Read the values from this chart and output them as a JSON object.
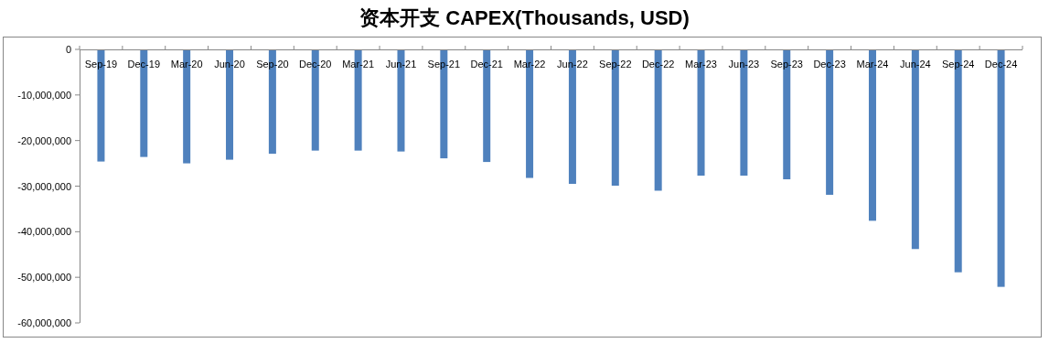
{
  "chart_data": {
    "type": "bar",
    "title": "资本开支 CAPEX(Thousands, USD)",
    "categories": [
      "Sep-19",
      "Dec-19",
      "Mar-20",
      "Jun-20",
      "Sep-20",
      "Dec-20",
      "Mar-21",
      "Jun-21",
      "Sep-21",
      "Dec-21",
      "Mar-22",
      "Jun-22",
      "Sep-22",
      "Dec-22",
      "Mar-23",
      "Jun-23",
      "Sep-23",
      "Dec-23",
      "Mar-24",
      "Jun-24",
      "Sep-24",
      "Dec-24"
    ],
    "values": [
      -24600000,
      -23600000,
      -25000000,
      -24200000,
      -22900000,
      -22200000,
      -22200000,
      -22400000,
      -23900000,
      -24700000,
      -28200000,
      -29500000,
      -29900000,
      -31000000,
      -27700000,
      -27700000,
      -28500000,
      -31900000,
      -37600000,
      -43800000,
      -48900000,
      -52100000
    ],
    "color": "#4f81bd",
    "ylim": [
      -60000000,
      0
    ],
    "yticks": [
      {
        "value": -60000000,
        "label": "-60,000,000"
      },
      {
        "value": -50000000,
        "label": "-50,000,000"
      },
      {
        "value": -40000000,
        "label": "-40,000,000"
      },
      {
        "value": -30000000,
        "label": "-30,000,000"
      },
      {
        "value": -20000000,
        "label": "-20,000,000"
      },
      {
        "value": -10000000,
        "label": "-10,000,000"
      },
      0
    ],
    "grid": false
  }
}
